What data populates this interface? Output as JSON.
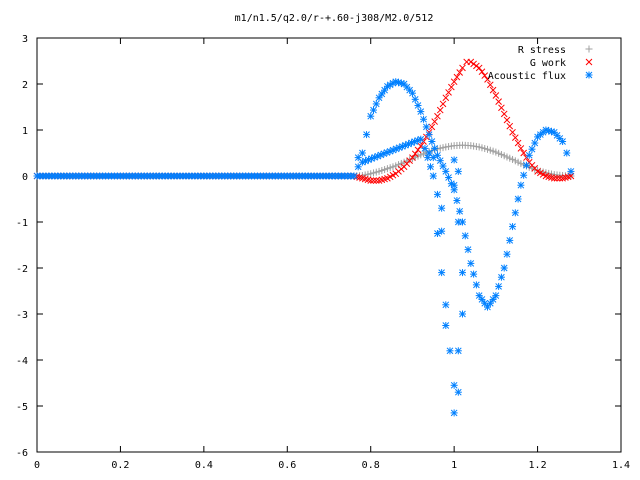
{
  "chart_data": {
    "type": "scatter",
    "title": "m1/n1.5/q2.0/r-+.60-j308/M2.0/512",
    "xlabel": "",
    "ylabel": "",
    "xlim": [
      0,
      1.4
    ],
    "ylim": [
      -6,
      3
    ],
    "x_ticks": [
      0,
      0.2,
      0.4,
      0.6,
      0.8,
      1,
      1.2,
      1.4
    ],
    "x_tick_labels": [
      "0",
      "0.2",
      "0.4",
      "0.6",
      "0.8",
      "1",
      "1.2",
      "1.4"
    ],
    "y_ticks": [
      -6,
      -5,
      -4,
      -3,
      -2,
      -1,
      0,
      1,
      2,
      3
    ],
    "y_tick_labels": [
      "-6",
      "-5",
      "-4",
      "-3",
      "-2",
      "-1",
      "0",
      "1",
      "2",
      "3"
    ],
    "grid": false,
    "legend_position": "top-right",
    "series": [
      {
        "name": "R stress",
        "marker": "plus",
        "color": "#a0a0a0",
        "points": [
          [
            0.0,
            0
          ],
          [
            0.1,
            0
          ],
          [
            0.2,
            0
          ],
          [
            0.3,
            0
          ],
          [
            0.4,
            0
          ],
          [
            0.5,
            0
          ],
          [
            0.6,
            0
          ],
          [
            0.7,
            0
          ],
          [
            0.76,
            0
          ],
          [
            0.78,
            0.01
          ],
          [
            0.8,
            0.05
          ],
          [
            0.82,
            0.1
          ],
          [
            0.84,
            0.16
          ],
          [
            0.86,
            0.22
          ],
          [
            0.88,
            0.3
          ],
          [
            0.9,
            0.38
          ],
          [
            0.92,
            0.46
          ],
          [
            0.94,
            0.53
          ],
          [
            0.96,
            0.59
          ],
          [
            0.98,
            0.63
          ],
          [
            1.0,
            0.66
          ],
          [
            1.02,
            0.67
          ],
          [
            1.04,
            0.66
          ],
          [
            1.06,
            0.63
          ],
          [
            1.08,
            0.58
          ],
          [
            1.1,
            0.52
          ],
          [
            1.12,
            0.44
          ],
          [
            1.14,
            0.36
          ],
          [
            1.16,
            0.27
          ],
          [
            1.18,
            0.19
          ],
          [
            1.2,
            0.12
          ],
          [
            1.22,
            0.07
          ],
          [
            1.24,
            0.03
          ],
          [
            1.26,
            0.01
          ],
          [
            1.28,
            0.0
          ]
        ]
      },
      {
        "name": "G work",
        "marker": "cross",
        "color": "#ff0000",
        "points": [
          [
            0.0,
            0
          ],
          [
            0.1,
            0
          ],
          [
            0.2,
            0
          ],
          [
            0.3,
            0
          ],
          [
            0.4,
            0
          ],
          [
            0.5,
            0
          ],
          [
            0.6,
            0
          ],
          [
            0.7,
            0
          ],
          [
            0.76,
            0
          ],
          [
            0.78,
            -0.05
          ],
          [
            0.8,
            -0.1
          ],
          [
            0.82,
            -0.1
          ],
          [
            0.84,
            -0.05
          ],
          [
            0.86,
            0.05
          ],
          [
            0.88,
            0.2
          ],
          [
            0.9,
            0.4
          ],
          [
            0.92,
            0.65
          ],
          [
            0.94,
            0.95
          ],
          [
            0.96,
            1.3
          ],
          [
            0.98,
            1.7
          ],
          [
            1.0,
            2.05
          ],
          [
            1.02,
            2.35
          ],
          [
            1.03,
            2.48
          ],
          [
            1.04,
            2.48
          ],
          [
            1.06,
            2.35
          ],
          [
            1.08,
            2.1
          ],
          [
            1.1,
            1.75
          ],
          [
            1.12,
            1.35
          ],
          [
            1.14,
            0.95
          ],
          [
            1.16,
            0.6
          ],
          [
            1.18,
            0.3
          ],
          [
            1.2,
            0.1
          ],
          [
            1.22,
            0.0
          ],
          [
            1.24,
            -0.05
          ],
          [
            1.26,
            -0.05
          ],
          [
            1.28,
            0.0
          ]
        ]
      },
      {
        "name": "Acoustic flux",
        "marker": "star",
        "color": "#0080ff",
        "points": [
          [
            0.0,
            0
          ],
          [
            0.1,
            0
          ],
          [
            0.2,
            0
          ],
          [
            0.3,
            0
          ],
          [
            0.4,
            0
          ],
          [
            0.5,
            0
          ],
          [
            0.6,
            0
          ],
          [
            0.7,
            0
          ],
          [
            0.76,
            0
          ],
          [
            0.77,
            0.2
          ],
          [
            0.78,
            0.5
          ],
          [
            0.79,
            0.9
          ],
          [
            0.8,
            1.3
          ],
          [
            0.82,
            1.7
          ],
          [
            0.84,
            1.95
          ],
          [
            0.86,
            2.05
          ],
          [
            0.88,
            2.0
          ],
          [
            0.9,
            1.8
          ],
          [
            0.92,
            1.4
          ],
          [
            0.94,
            0.9
          ],
          [
            0.96,
            0.45
          ],
          [
            0.98,
            0.1
          ],
          [
            1.0,
            -0.3
          ],
          [
            1.02,
            -1.0
          ],
          [
            1.04,
            -1.9
          ],
          [
            1.06,
            -2.6
          ],
          [
            1.08,
            -2.85
          ],
          [
            1.1,
            -2.6
          ],
          [
            1.12,
            -2.0
          ],
          [
            1.14,
            -1.1
          ],
          [
            1.16,
            -0.2
          ],
          [
            1.18,
            0.45
          ],
          [
            1.2,
            0.85
          ],
          [
            1.22,
            1.0
          ],
          [
            1.24,
            0.95
          ],
          [
            1.26,
            0.75
          ],
          [
            1.27,
            0.5
          ],
          [
            1.28,
            0.1
          ],
          [
            0.77,
            0.4
          ],
          [
            0.78,
            0.3
          ],
          [
            0.92,
            0.8
          ],
          [
            0.93,
            0.6
          ],
          [
            0.95,
            0.0
          ],
          [
            0.96,
            -0.4
          ],
          [
            0.97,
            -0.7
          ],
          [
            0.97,
            -1.2
          ],
          [
            0.96,
            -1.25
          ],
          [
            0.97,
            -2.1
          ],
          [
            0.98,
            -2.8
          ],
          [
            0.98,
            -3.25
          ],
          [
            0.99,
            -3.8
          ],
          [
            1.0,
            -4.55
          ],
          [
            1.0,
            -5.15
          ],
          [
            1.01,
            -4.7
          ],
          [
            1.01,
            -3.8
          ],
          [
            1.01,
            -1.0
          ],
          [
            1.02,
            -2.1
          ],
          [
            1.02,
            -3.0
          ],
          [
            1.0,
            0.35
          ],
          [
            1.01,
            0.1
          ],
          [
            1.0,
            -0.2
          ],
          [
            0.95,
            0.4
          ],
          [
            0.94,
            0.5
          ]
        ]
      }
    ]
  }
}
